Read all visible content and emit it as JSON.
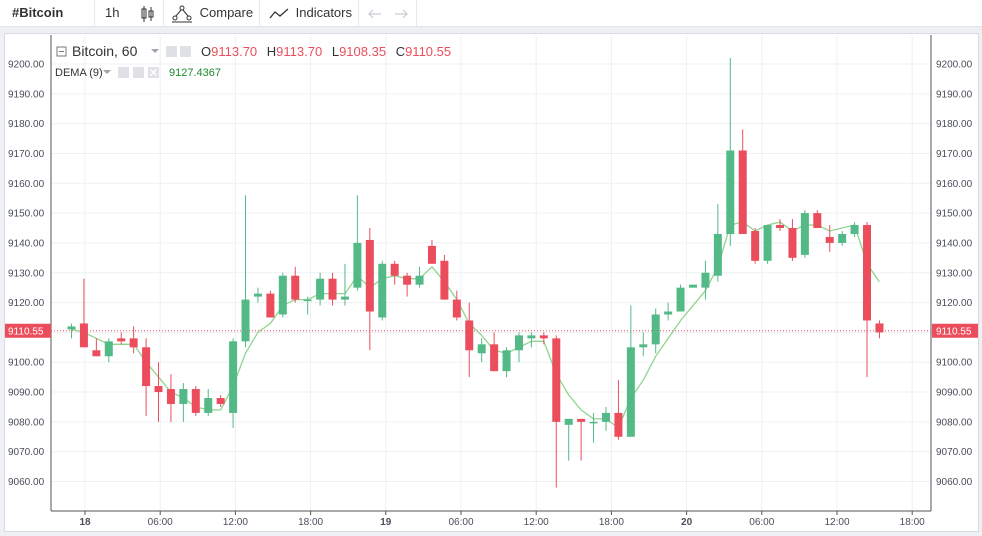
{
  "toolbar": {
    "symbol": "#Bitcoin",
    "interval": "1h",
    "compare_label": "Compare",
    "indicators_label": "Indicators"
  },
  "legend": {
    "series_name": "Bitcoin, 60",
    "o_label": "O",
    "o_value": "9113.70",
    "h_label": "H",
    "h_value": "9113.70",
    "l_label": "L",
    "l_value": "9108.35",
    "c_label": "C",
    "c_value": "9110.55",
    "dema_name": "DEMA (9)",
    "dema_value": "9127.4367"
  },
  "last_price_label": "9110.55",
  "colors": {
    "up": "#53b987",
    "down": "#eb4d5c",
    "dema": "#8fd48f",
    "price_line": "#eb4d5c",
    "grid": "#eef0f4"
  },
  "chart_data": {
    "type": "candlestick",
    "ylim": [
      9055,
      9205
    ],
    "y_ticks": [
      9060,
      9070,
      9080,
      9090,
      9100,
      9110,
      9120,
      9130,
      9140,
      9150,
      9160,
      9170,
      9180,
      9190,
      9200
    ],
    "y_tick_labels": [
      "9060.00",
      "9070.00",
      "9080.00",
      "9090.00",
      "9100.00",
      "9110.00",
      "9120.00",
      "9130.00",
      "9140.00",
      "9150.00",
      "9160.00",
      "9170.00",
      "9180.00",
      "9190.00",
      "9200.00"
    ],
    "x_ticks": [
      {
        "label": "18",
        "bold": true
      },
      {
        "label": "06:00",
        "bold": false
      },
      {
        "label": "12:00",
        "bold": false
      },
      {
        "label": "18:00",
        "bold": false
      },
      {
        "label": "19",
        "bold": true
      },
      {
        "label": "06:00",
        "bold": false
      },
      {
        "label": "12:00",
        "bold": false
      },
      {
        "label": "18:00",
        "bold": false
      },
      {
        "label": "20",
        "bold": true
      },
      {
        "label": "06:00",
        "bold": false
      },
      {
        "label": "12:00",
        "bold": false
      },
      {
        "label": "18:00",
        "bold": false
      }
    ],
    "candles": [
      [
        9111,
        9113,
        9108,
        9112
      ],
      [
        9113,
        9128,
        9106,
        9105
      ],
      [
        9104,
        9108,
        9102,
        9102
      ],
      [
        9102,
        9108,
        9100,
        9107
      ],
      [
        9108,
        9110,
        9106,
        9107
      ],
      [
        9108,
        9112,
        9103,
        9105
      ],
      [
        9105,
        9108,
        9082,
        9092
      ],
      [
        9092,
        9100,
        9080,
        9090
      ],
      [
        9091,
        9096,
        9080,
        9086
      ],
      [
        9086,
        9093,
        9080,
        9091
      ],
      [
        9091,
        9092,
        9082,
        9083
      ],
      [
        9083,
        9091,
        9082,
        9088
      ],
      [
        9088,
        9089,
        9085,
        9086
      ],
      [
        9083,
        9108,
        9078,
        9107
      ],
      [
        9107,
        9156,
        9105,
        9121
      ],
      [
        9122,
        9125,
        9120,
        9123
      ],
      [
        9123,
        9124,
        9115,
        9115
      ],
      [
        9116,
        9130,
        9115,
        9129
      ],
      [
        9129,
        9132,
        9120,
        9121
      ],
      [
        9121,
        9122,
        9116,
        9121
      ],
      [
        9121,
        9130,
        9119,
        9128
      ],
      [
        9128,
        9130,
        9119,
        9121
      ],
      [
        9121,
        9133,
        9119,
        9122
      ],
      [
        9125,
        9156,
        9124,
        9140
      ],
      [
        9141,
        9145,
        9104,
        9117
      ],
      [
        9115,
        9134,
        9114,
        9133
      ],
      [
        9133,
        9134,
        9126,
        9129
      ],
      [
        9129,
        9130,
        9122,
        9126
      ],
      [
        9126,
        9132,
        9125,
        9129
      ],
      [
        9139,
        9141,
        9133,
        9133
      ],
      [
        9134,
        9136,
        9121,
        9121
      ],
      [
        9121,
        9124,
        9114,
        9115
      ],
      [
        9114,
        9120,
        9095,
        9104
      ],
      [
        9103,
        9108,
        9100,
        9106
      ],
      [
        9106,
        9110,
        9097,
        9097
      ],
      [
        9097,
        9105,
        9095,
        9104
      ],
      [
        9104,
        9110,
        9100,
        9109
      ],
      [
        9108,
        9110,
        9105,
        9109
      ],
      [
        9109,
        9110,
        9106,
        9108
      ],
      [
        9108,
        9109,
        9058,
        9080
      ],
      [
        9079,
        9081,
        9067,
        9081
      ],
      [
        9081,
        9081,
        9067,
        9080
      ],
      [
        9080,
        9083,
        9073,
        9080
      ],
      [
        9080,
        9085,
        9077,
        9083
      ],
      [
        9083,
        9094,
        9074,
        9075
      ],
      [
        9075,
        9119,
        9075,
        9105
      ],
      [
        9105,
        9110,
        9102,
        9106
      ],
      [
        9106,
        9118,
        9103,
        9116
      ],
      [
        9116,
        9120,
        9114,
        9117
      ],
      [
        9117,
        9126,
        9117,
        9125
      ],
      [
        9125,
        9126,
        9125,
        9126
      ],
      [
        9125,
        9134,
        9121,
        9130
      ],
      [
        9129,
        9153,
        9127,
        9143
      ],
      [
        9143,
        9202,
        9139,
        9171
      ],
      [
        9171,
        9178,
        9143,
        9143
      ],
      [
        9144,
        9145,
        9133,
        9134
      ],
      [
        9134,
        9146,
        9133,
        9146
      ],
      [
        9146,
        9148,
        9144,
        9145
      ],
      [
        9145,
        9148,
        9134,
        9135
      ],
      [
        9136,
        9151,
        9135,
        9150
      ],
      [
        9150,
        9151,
        9145,
        9145
      ],
      [
        9142,
        9146,
        9137,
        9140
      ],
      [
        9140,
        9144,
        9139,
        9143
      ],
      [
        9143,
        9147,
        9142,
        9146
      ],
      [
        9146,
        9147,
        9095,
        9114
      ],
      [
        9113,
        9114,
        9108,
        9110
      ]
    ],
    "dema": [
      9111,
      9110,
      9108,
      9106,
      9106,
      9106,
      9100,
      9095,
      9090,
      9088,
      9085,
      9084,
      9084,
      9092,
      9103,
      9110,
      9113,
      9119,
      9121,
      9121,
      9123,
      9123,
      9123,
      9129,
      9125,
      9128,
      9129,
      9128,
      9128,
      9132,
      9127,
      9121,
      9113,
      9109,
      9104,
      9103,
      9105,
      9107,
      9107,
      9096,
      9089,
      9084,
      9081,
      9081,
      9078,
      9088,
      9094,
      9102,
      9108,
      9114,
      9119,
      9124,
      9132,
      9146,
      9147,
      9144,
      9146,
      9147,
      9144,
      9146,
      9146,
      9144,
      9145,
      9146,
      9133,
      9127
    ]
  }
}
